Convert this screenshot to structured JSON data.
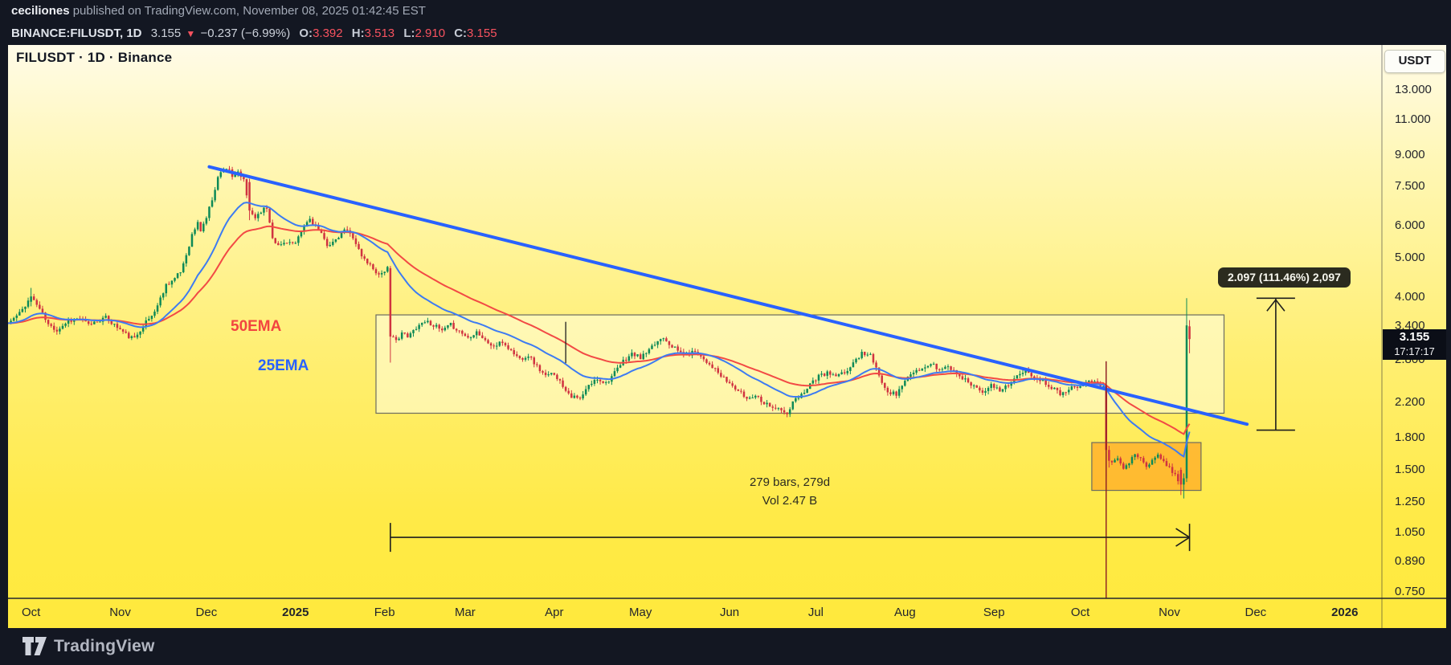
{
  "header": {
    "author": "ceciliones",
    "published_text": " published on TradingView.com, November 08, 2025 01:42:45 EST",
    "symbol_line": {
      "symbol": "BINANCE:FILUSDT, 1D",
      "last_price": "3.155",
      "direction_icon": "▼",
      "change": "−0.237 (−6.99%)",
      "ohlc": [
        {
          "label": "O:",
          "value": "3.392"
        },
        {
          "label": "H:",
          "value": "3.513"
        },
        {
          "label": "L:",
          "value": "2.910"
        },
        {
          "label": "C:",
          "value": "3.155"
        }
      ]
    }
  },
  "chart_title": "FILUSDT · 1D · Binance",
  "price_axis": {
    "currency_button": "USDT",
    "last_price_label": "3.155",
    "countdown": "17:17:17",
    "ticks": [
      {
        "v": 13,
        "label": "13.000"
      },
      {
        "v": 11,
        "label": "11.000"
      },
      {
        "v": 9,
        "label": "9.000"
      },
      {
        "v": 7.5,
        "label": "7.500"
      },
      {
        "v": 6,
        "label": "6.000"
      },
      {
        "v": 5,
        "label": "5.000"
      },
      {
        "v": 4,
        "label": "4.000"
      },
      {
        "v": 3.4,
        "label": "3.400"
      },
      {
        "v": 2.8,
        "label": "2.800"
      },
      {
        "v": 2.2,
        "label": "2.200"
      },
      {
        "v": 1.8,
        "label": "1.800"
      },
      {
        "v": 1.5,
        "label": "1.500"
      },
      {
        "v": 1.25,
        "label": "1.250"
      },
      {
        "v": 1.05,
        "label": "1.050"
      },
      {
        "v": 0.89,
        "label": "0.890"
      },
      {
        "v": 0.75,
        "label": "0.750"
      }
    ]
  },
  "time_axis": {
    "ticks": [
      {
        "day": 8,
        "label": "Oct"
      },
      {
        "day": 39,
        "label": "Nov"
      },
      {
        "day": 69,
        "label": "Dec"
      },
      {
        "day": 100,
        "label": "2025",
        "bold": true
      },
      {
        "day": 131,
        "label": "Feb"
      },
      {
        "day": 159,
        "label": "Mar"
      },
      {
        "day": 190,
        "label": "Apr"
      },
      {
        "day": 220,
        "label": "May"
      },
      {
        "day": 251,
        "label": "Jun"
      },
      {
        "day": 281,
        "label": "Jul"
      },
      {
        "day": 312,
        "label": "Aug"
      },
      {
        "day": 343,
        "label": "Sep"
      },
      {
        "day": 373,
        "label": "Oct"
      },
      {
        "day": 404,
        "label": "Nov"
      },
      {
        "day": 434,
        "label": "Dec"
      },
      {
        "day": 465,
        "label": "2026",
        "bold": true
      }
    ]
  },
  "annotations": {
    "ema50_label": "50EMA",
    "ema25_label": "25EMA"
  },
  "footer": {
    "brand": "TradingView"
  },
  "colors": {
    "up": "#0d8a57",
    "down": "#d03340",
    "big_box_fill": "rgba(255,255,238,0.5)",
    "box_stroke": "#6b6b60",
    "orange_box_fill": "rgba(255,148,22,0.55)",
    "accent_red": "#f7525f",
    "trendline_blue": "#2962ff"
  },
  "chart_data": {
    "type": "candlestick",
    "symbol": "BINANCE:FILUSDT",
    "interval": "1D",
    "scale": "log",
    "start_date": "2024-09-23",
    "end_date": "2025-11-08",
    "bars_shown": 412,
    "ylim": [
      0.72,
      14.5
    ],
    "last_bar": {
      "open": 3.392,
      "high": 3.513,
      "low": 2.91,
      "close": 3.155
    },
    "indicators": [
      {
        "name": "50EMA",
        "period": 50,
        "color": "#f24a45"
      },
      {
        "name": "25EMA",
        "period": 25,
        "color": "#3d7bf2"
      }
    ],
    "price_keypoints": [
      [
        0,
        3.45
      ],
      [
        4,
        3.65
      ],
      [
        8,
        4.02
      ],
      [
        11,
        3.75
      ],
      [
        14,
        3.42
      ],
      [
        17,
        3.32
      ],
      [
        21,
        3.5
      ],
      [
        25,
        3.55
      ],
      [
        28,
        3.42
      ],
      [
        31,
        3.5
      ],
      [
        34,
        3.56
      ],
      [
        37,
        3.42
      ],
      [
        39,
        3.33
      ],
      [
        42,
        3.2
      ],
      [
        44,
        3.16
      ],
      [
        47,
        3.42
      ],
      [
        50,
        3.6
      ],
      [
        52,
        3.82
      ],
      [
        55,
        4.3
      ],
      [
        58,
        4.45
      ],
      [
        60,
        4.62
      ],
      [
        62,
        5.1
      ],
      [
        64,
        5.7
      ],
      [
        66,
        6.1
      ],
      [
        67,
        5.85
      ],
      [
        69,
        6.3
      ],
      [
        71,
        7.0
      ],
      [
        73,
        7.9
      ],
      [
        75,
        8.35
      ],
      [
        77,
        8.3
      ],
      [
        78,
        7.85
      ],
      [
        80,
        8.15
      ],
      [
        82,
        7.75
      ],
      [
        84,
        6.55
      ],
      [
        86,
        6.3
      ],
      [
        88,
        6.55
      ],
      [
        90,
        6.65
      ],
      [
        92,
        5.65
      ],
      [
        94,
        5.35
      ],
      [
        97,
        5.5
      ],
      [
        100,
        5.4
      ],
      [
        103,
        6.0
      ],
      [
        105,
        6.25
      ],
      [
        108,
        5.85
      ],
      [
        111,
        5.4
      ],
      [
        114,
        5.5
      ],
      [
        117,
        5.9
      ],
      [
        120,
        5.65
      ],
      [
        123,
        5.05
      ],
      [
        126,
        4.8
      ],
      [
        129,
        4.55
      ],
      [
        132,
        4.72
      ],
      [
        133,
        3.2
      ],
      [
        135,
        3.12
      ],
      [
        137,
        3.28
      ],
      [
        139,
        3.18
      ],
      [
        142,
        3.38
      ],
      [
        145,
        3.5
      ],
      [
        148,
        3.42
      ],
      [
        151,
        3.3
      ],
      [
        154,
        3.42
      ],
      [
        157,
        3.3
      ],
      [
        160,
        3.18
      ],
      [
        163,
        3.3
      ],
      [
        166,
        3.12
      ],
      [
        169,
        3.02
      ],
      [
        172,
        3.1
      ],
      [
        175,
        2.95
      ],
      [
        178,
        2.82
      ],
      [
        181,
        2.88
      ],
      [
        184,
        2.7
      ],
      [
        187,
        2.55
      ],
      [
        190,
        2.6
      ],
      [
        193,
        2.42
      ],
      [
        196,
        2.28
      ],
      [
        199,
        2.24
      ],
      [
        202,
        2.42
      ],
      [
        205,
        2.52
      ],
      [
        208,
        2.46
      ],
      [
        211,
        2.6
      ],
      [
        214,
        2.78
      ],
      [
        217,
        2.9
      ],
      [
        220,
        2.84
      ],
      [
        223,
        2.95
      ],
      [
        226,
        3.12
      ],
      [
        228,
        3.2
      ],
      [
        230,
        3.08
      ],
      [
        233,
        2.95
      ],
      [
        236,
        2.88
      ],
      [
        239,
        2.95
      ],
      [
        242,
        2.82
      ],
      [
        245,
        2.7
      ],
      [
        248,
        2.55
      ],
      [
        251,
        2.45
      ],
      [
        254,
        2.35
      ],
      [
        257,
        2.25
      ],
      [
        260,
        2.3
      ],
      [
        263,
        2.2
      ],
      [
        266,
        2.15
      ],
      [
        269,
        2.1
      ],
      [
        271,
        2.05
      ],
      [
        273,
        2.2
      ],
      [
        276,
        2.3
      ],
      [
        279,
        2.45
      ],
      [
        282,
        2.55
      ],
      [
        285,
        2.6
      ],
      [
        288,
        2.55
      ],
      [
        291,
        2.6
      ],
      [
        294,
        2.75
      ],
      [
        297,
        2.92
      ],
      [
        300,
        2.88
      ],
      [
        303,
        2.55
      ],
      [
        306,
        2.35
      ],
      [
        309,
        2.3
      ],
      [
        312,
        2.5
      ],
      [
        315,
        2.6
      ],
      [
        318,
        2.65
      ],
      [
        321,
        2.75
      ],
      [
        324,
        2.65
      ],
      [
        327,
        2.7
      ],
      [
        330,
        2.6
      ],
      [
        333,
        2.5
      ],
      [
        336,
        2.42
      ],
      [
        339,
        2.35
      ],
      [
        342,
        2.42
      ],
      [
        345,
        2.35
      ],
      [
        348,
        2.45
      ],
      [
        351,
        2.55
      ],
      [
        354,
        2.62
      ],
      [
        357,
        2.55
      ],
      [
        360,
        2.48
      ],
      [
        363,
        2.4
      ],
      [
        366,
        2.32
      ],
      [
        369,
        2.38
      ],
      [
        372,
        2.42
      ],
      [
        375,
        2.48
      ],
      [
        377,
        2.5
      ],
      [
        379,
        2.42
      ],
      [
        381,
        2.42
      ],
      [
        382,
        1.68
      ],
      [
        384,
        1.58
      ],
      [
        386,
        1.62
      ],
      [
        388,
        1.5
      ],
      [
        390,
        1.56
      ],
      [
        392,
        1.64
      ],
      [
        394,
        1.6
      ],
      [
        396,
        1.52
      ],
      [
        398,
        1.58
      ],
      [
        400,
        1.64
      ],
      [
        402,
        1.56
      ],
      [
        404,
        1.52
      ],
      [
        406,
        1.46
      ],
      [
        408,
        1.38
      ],
      [
        409,
        1.43
      ],
      [
        410,
        3.41
      ],
      [
        411,
        3.155
      ]
    ],
    "notable_bars": [
      {
        "day": 8,
        "open": 3.9,
        "high": 4.22,
        "low": 3.8,
        "close": 4.02
      },
      {
        "day": 84,
        "open": 7.7,
        "high": 7.85,
        "low": 6.2,
        "close": 6.55
      },
      {
        "day": 133,
        "open": 4.72,
        "high": 4.78,
        "low": 2.76,
        "close": 3.2
      },
      {
        "day": 382,
        "open": 2.42,
        "high": 2.78,
        "low": 1.45,
        "close": 1.68
      },
      {
        "day": 383,
        "open": 1.68,
        "high": 1.72,
        "low": 1.52,
        "close": 1.58
      },
      {
        "day": 408,
        "open": 1.5,
        "high": 1.52,
        "low": 1.3,
        "close": 1.38
      },
      {
        "day": 409,
        "open": 1.38,
        "high": 1.47,
        "low": 1.275,
        "close": 1.43
      },
      {
        "day": 410,
        "open": 1.43,
        "high": 3.98,
        "low": 1.4,
        "close": 3.41
      },
      {
        "day": 411,
        "open": 3.392,
        "high": 3.513,
        "low": 2.91,
        "close": 3.155
      }
    ],
    "drawings": {
      "trendline": {
        "from_day": 70,
        "from_price": 8.4,
        "to_day": 431,
        "to_price": 1.945,
        "color": "#2962ff"
      },
      "big_box": {
        "from_day": 128,
        "to_day": 423,
        "top_price": 3.62,
        "bottom_price": 2.07
      },
      "orange_box": {
        "from_day": 377,
        "to_day": 415,
        "top_price": 1.752,
        "bottom_price": 1.335
      },
      "red_vline": {
        "day": 382,
        "top_price": 2.78,
        "color": "#8a1c22"
      },
      "black_vline": {
        "day": 194,
        "top_price": 3.48,
        "bottom_price": 2.75
      },
      "measure": {
        "from_day": 133,
        "to_day": 411,
        "at_price": 1.022,
        "label1": "279 bars, 279d",
        "label2": "Vol 2.47 B"
      },
      "price_range": {
        "at_day": 441,
        "top_price": 3.98,
        "bottom_price": 1.88,
        "label": "2.097 (111.46%) 2,097"
      }
    }
  }
}
